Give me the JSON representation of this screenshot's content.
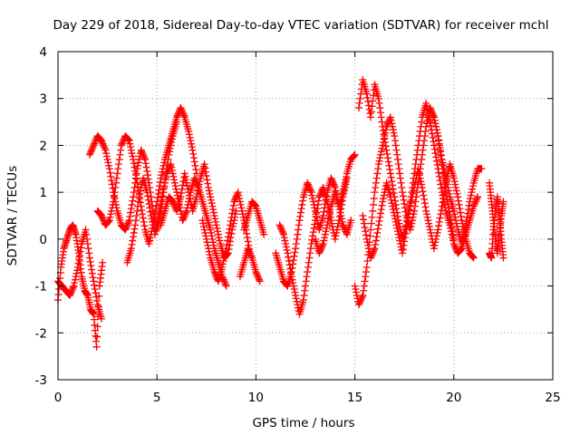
{
  "chart_data": {
    "type": "scatter",
    "title": "Day 229 of 2018, Sidereal Day-to-day VTEC variation (SDTVAR) for receiver mchl",
    "xlabel": "GPS time / hours",
    "ylabel": "SDTVAR / TECUs",
    "xlim": [
      0,
      25
    ],
    "ylim": [
      -3,
      4
    ],
    "xticks": [
      0,
      5,
      10,
      15,
      20,
      25
    ],
    "yticks": [
      -3,
      -2,
      -1,
      0,
      1,
      2,
      3,
      4
    ],
    "xtick_labels": [
      "0",
      "5",
      "10",
      "15",
      "20",
      "25"
    ],
    "ytick_labels": [
      "-3",
      "-2",
      "-1",
      "0",
      "1",
      "2",
      "3",
      "4"
    ],
    "grid": true,
    "marker": "+",
    "marker_color": "#ff0000",
    "series": [
      {
        "name": "mchl",
        "segments": [
          {
            "x": [
              0.0,
              0.15,
              0.3,
              0.45,
              0.6,
              0.75,
              0.9,
              1.05,
              1.2,
              1.35,
              1.5,
              1.65,
              1.8,
              1.95,
              2.1,
              2.25
            ],
            "y": [
              -1.3,
              -0.6,
              -0.2,
              0.0,
              0.2,
              0.3,
              0.1,
              -0.3,
              -0.8,
              -1.1,
              -1.2,
              -1.5,
              -1.6,
              -2.3,
              -1.0,
              -0.5
            ]
          },
          {
            "x": [
              0.0,
              0.2,
              0.4,
              0.6,
              0.8,
              1.0,
              1.2,
              1.4,
              1.6,
              1.8,
              2.0,
              2.2
            ],
            "y": [
              -0.9,
              -1.0,
              -1.1,
              -1.2,
              -1.0,
              -0.6,
              -0.1,
              0.2,
              -0.4,
              -0.9,
              -1.4,
              -1.7
            ]
          },
          {
            "x": [
              1.6,
              1.8,
              2.0,
              2.2,
              2.4,
              2.6,
              2.8,
              3.0,
              3.2,
              3.4,
              3.6,
              3.8,
              4.0,
              4.2,
              4.4,
              4.6,
              4.8,
              5.0,
              5.2,
              5.4,
              5.6,
              5.8,
              6.0
            ],
            "y": [
              1.8,
              2.0,
              2.2,
              2.1,
              1.9,
              1.5,
              1.0,
              0.6,
              0.3,
              0.2,
              0.4,
              0.9,
              1.5,
              1.9,
              1.7,
              1.2,
              0.6,
              0.2,
              0.6,
              1.2,
              1.8,
              2.2,
              2.5
            ]
          },
          {
            "x": [
              2.0,
              2.2,
              2.4,
              2.6,
              2.8,
              3.0,
              3.2,
              3.4,
              3.6,
              3.8,
              4.0,
              4.2,
              4.4,
              4.6,
              4.8,
              5.0,
              5.2,
              5.4,
              5.6,
              5.8,
              6.0,
              6.2,
              6.4,
              6.6,
              6.8,
              7.0
            ],
            "y": [
              0.6,
              0.5,
              0.3,
              0.4,
              0.8,
              1.4,
              2.0,
              2.2,
              2.1,
              1.7,
              1.2,
              0.7,
              0.2,
              -0.1,
              0.3,
              0.8,
              1.3,
              1.7,
              2.0,
              2.3,
              2.6,
              2.8,
              2.6,
              2.3,
              1.9,
              1.4
            ]
          },
          {
            "x": [
              3.5,
              3.7,
              3.9,
              4.1,
              4.3,
              4.5,
              4.7,
              4.9,
              5.1,
              5.3,
              5.5,
              5.7,
              5.9,
              6.1,
              6.3,
              6.5,
              6.7,
              6.9,
              7.1,
              7.3,
              7.5,
              7.7,
              7.9,
              8.1,
              8.3,
              8.5
            ],
            "y": [
              -0.5,
              -0.2,
              0.3,
              0.9,
              1.3,
              1.0,
              0.5,
              0.1,
              0.5,
              1.0,
              1.4,
              1.6,
              1.2,
              0.8,
              0.4,
              0.6,
              1.0,
              1.3,
              1.1,
              0.8,
              0.5,
              0.2,
              -0.2,
              -0.5,
              -0.8,
              -1.0
            ]
          },
          {
            "x": [
              5.2,
              5.4,
              5.6,
              5.8,
              6.0,
              6.2,
              6.4,
              6.6,
              6.8,
              7.0,
              7.2,
              7.4,
              7.6,
              7.8,
              8.0,
              8.2,
              8.4,
              8.6,
              8.8,
              9.0
            ],
            "y": [
              0.3,
              0.6,
              0.9,
              0.8,
              0.6,
              0.9,
              1.4,
              1.0,
              0.6,
              0.9,
              1.3,
              1.6,
              1.1,
              0.7,
              0.3,
              -0.1,
              -0.4,
              -0.3,
              0.2,
              0.6
            ]
          },
          {
            "x": [
              7.3,
              7.5,
              7.7,
              7.9,
              8.1,
              8.3,
              8.5,
              8.7,
              8.9,
              9.1,
              9.3,
              9.5,
              9.7
            ],
            "y": [
              0.4,
              0.0,
              -0.4,
              -0.7,
              -0.9,
              -0.6,
              -0.2,
              0.3,
              0.8,
              1.0,
              0.6,
              0.2,
              -0.3
            ]
          },
          {
            "x": [
              9.4,
              9.6,
              9.8,
              10.0,
              10.2,
              10.4
            ],
            "y": [
              0.2,
              0.5,
              0.8,
              0.7,
              0.4,
              0.1
            ]
          },
          {
            "x": [
              9.2,
              9.4,
              9.6,
              9.8,
              10.0,
              10.2
            ],
            "y": [
              -0.8,
              -0.5,
              -0.2,
              -0.4,
              -0.7,
              -0.9
            ]
          },
          {
            "x": [
              11.0,
              11.2,
              11.4,
              11.6,
              11.8,
              12.0,
              12.2,
              12.4,
              12.6,
              12.8,
              13.0,
              13.2,
              13.4,
              13.6,
              13.8,
              14.0,
              14.2,
              14.4,
              14.6,
              14.8,
              15.0
            ],
            "y": [
              -0.3,
              -0.6,
              -0.9,
              -1.0,
              -0.7,
              -0.2,
              0.4,
              0.9,
              1.2,
              1.0,
              0.6,
              0.2,
              0.5,
              1.0,
              1.3,
              1.1,
              0.7,
              1.0,
              1.4,
              1.7,
              1.8
            ]
          },
          {
            "x": [
              11.2,
              11.4,
              11.6,
              11.8,
              12.0,
              12.2,
              12.4,
              12.6,
              12.8,
              13.0,
              13.2,
              13.4,
              13.6,
              13.8,
              14.0,
              14.2,
              14.4,
              14.6
            ],
            "y": [
              0.3,
              0.1,
              -0.3,
              -0.8,
              -1.2,
              -1.6,
              -1.3,
              -0.7,
              -0.1,
              0.4,
              0.9,
              1.1,
              0.8,
              0.4,
              0.0,
              0.4,
              0.9,
              1.3
            ]
          },
          {
            "x": [
              13.0,
              13.2,
              13.4,
              13.6,
              13.8,
              14.0,
              14.2,
              14.4,
              14.6,
              14.8
            ],
            "y": [
              0.0,
              -0.3,
              -0.1,
              0.3,
              0.7,
              1.0,
              0.7,
              0.3,
              0.1,
              0.4
            ]
          },
          {
            "x": [
              15.0,
              15.2,
              15.4,
              15.6,
              15.8,
              16.0,
              16.2,
              16.4,
              16.6,
              16.8,
              17.0,
              17.2,
              17.4,
              17.6,
              17.8,
              18.0,
              18.2,
              18.4,
              18.6,
              18.8,
              19.0,
              19.2,
              19.4,
              19.6,
              19.8,
              20.0
            ],
            "y": [
              -1.0,
              -1.4,
              -1.2,
              -0.6,
              0.2,
              1.0,
              1.6,
              2.0,
              2.4,
              2.6,
              2.2,
              1.6,
              1.0,
              0.5,
              0.2,
              0.6,
              1.2,
              1.8,
              2.4,
              2.8,
              2.6,
              2.2,
              1.6,
              1.0,
              0.5,
              0.0
            ]
          },
          {
            "x": [
              15.2,
              15.4,
              15.6,
              15.8,
              16.0,
              16.2,
              16.4,
              16.6,
              16.8,
              17.0,
              17.2,
              17.4,
              17.6,
              17.8,
              18.0,
              18.2,
              18.4,
              18.6,
              18.8,
              19.0,
              19.2,
              19.4,
              19.6,
              19.8
            ],
            "y": [
              2.8,
              3.4,
              3.1,
              2.6,
              3.3,
              3.0,
              2.4,
              1.9,
              1.4,
              0.9,
              0.4,
              0.0,
              0.3,
              0.8,
              1.4,
              2.0,
              2.6,
              2.9,
              2.5,
              2.0,
              1.5,
              1.0,
              0.6,
              0.3
            ]
          },
          {
            "x": [
              15.4,
              15.6,
              15.8,
              16.0,
              16.2,
              16.4,
              16.6,
              16.8,
              17.0,
              17.2,
              17.4,
              17.6,
              17.8,
              18.0,
              18.2,
              18.4,
              18.6,
              18.8,
              19.0,
              19.2,
              19.4,
              19.6,
              19.8,
              20.0,
              20.2,
              20.4,
              20.6,
              20.8,
              21.0
            ],
            "y": [
              0.5,
              0.0,
              -0.4,
              -0.2,
              0.3,
              0.8,
              1.2,
              0.9,
              0.5,
              0.1,
              -0.3,
              0.2,
              0.7,
              1.1,
              1.5,
              1.1,
              0.6,
              0.2,
              -0.2,
              0.2,
              0.7,
              1.2,
              1.6,
              1.3,
              0.9,
              0.4,
              0.0,
              -0.3,
              -0.4
            ]
          },
          {
            "x": [
              19.0,
              19.2,
              19.4,
              19.6,
              19.8,
              20.0,
              20.2,
              20.4,
              20.6,
              20.8,
              21.0,
              21.2,
              21.4
            ],
            "y": [
              2.6,
              2.2,
              1.7,
              1.3,
              0.9,
              0.6,
              0.2,
              -0.1,
              0.3,
              0.8,
              1.2,
              1.5,
              1.5
            ]
          },
          {
            "x": [
              19.8,
              20.0,
              20.2,
              20.4,
              20.6,
              20.8,
              21.0,
              21.2
            ],
            "y": [
              0.3,
              -0.1,
              -0.3,
              -0.2,
              0.1,
              0.4,
              0.7,
              0.9
            ]
          },
          {
            "x": [
              21.8,
              21.9,
              22.0,
              22.1,
              22.2,
              22.3,
              22.4,
              22.5
            ],
            "y": [
              1.2,
              0.8,
              0.4,
              0.0,
              -0.3,
              0.1,
              0.5,
              0.8
            ]
          },
          {
            "x": [
              21.8,
              21.9,
              22.0,
              22.1,
              22.2,
              22.3,
              22.4,
              22.5
            ],
            "y": [
              -0.3,
              -0.4,
              0.2,
              0.6,
              0.9,
              0.5,
              0.0,
              -0.4
            ]
          }
        ]
      }
    ]
  }
}
